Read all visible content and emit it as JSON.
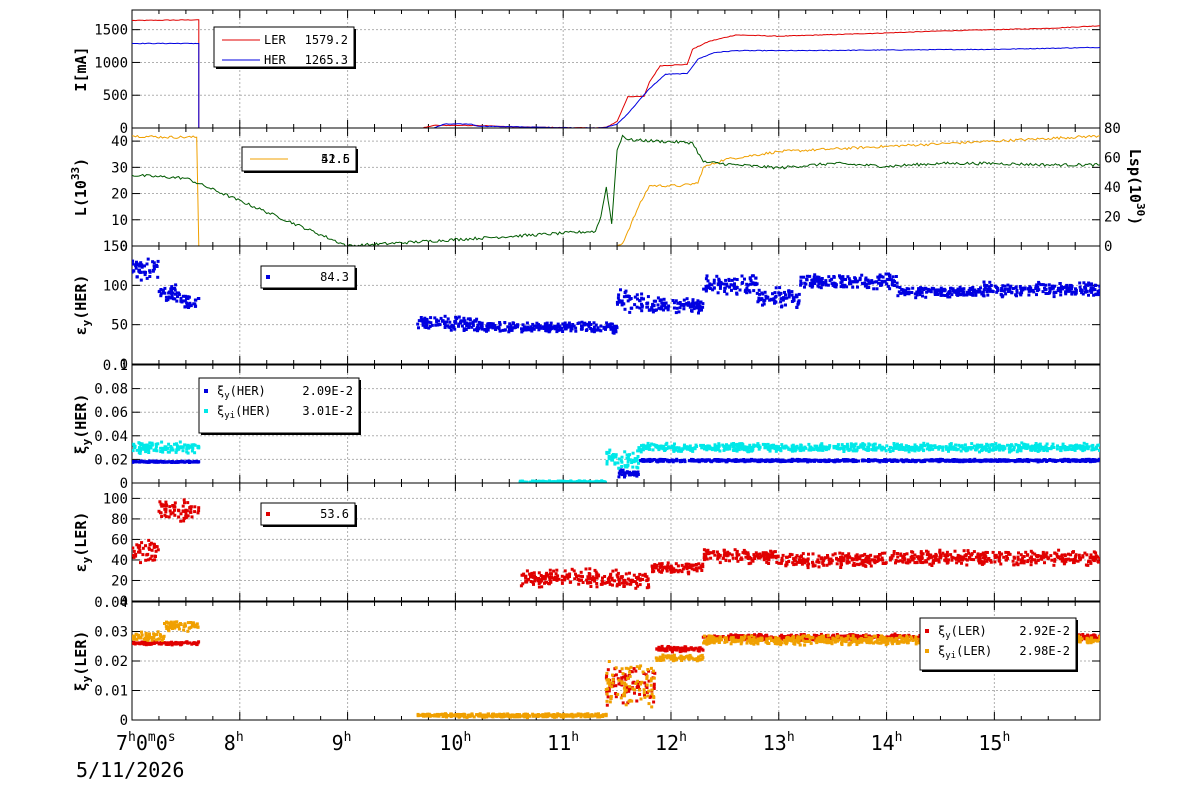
{
  "time_axis": {
    "ticks": [
      {
        "hour": 7,
        "label": "7",
        "sup": "h",
        "extra": "0",
        "extra_sup": "m",
        "extra2": "0",
        "extra2_sup": "s"
      },
      {
        "hour": 8,
        "label": "8",
        "sup": "h"
      },
      {
        "hour": 9,
        "label": "9",
        "sup": "h"
      },
      {
        "hour": 10,
        "label": "10",
        "sup": "h"
      },
      {
        "hour": 11,
        "label": "11",
        "sup": "h"
      },
      {
        "hour": 12,
        "label": "12",
        "sup": "h"
      },
      {
        "hour": 13,
        "label": "13",
        "sup": "h"
      },
      {
        "hour": 14,
        "label": "14",
        "sup": "h"
      },
      {
        "hour": 15,
        "label": "15",
        "sup": "h"
      }
    ],
    "range_hours": [
      7,
      15.98
    ],
    "date": "5/11/2026"
  },
  "colors": {
    "ler": "#e00000",
    "her": "#0000e0",
    "orange": "#f0a000",
    "green": "#005a00",
    "cyan": "#00e8e8",
    "grid": "#b0b0b0"
  },
  "chart_data": [
    {
      "id": "current",
      "type": "line",
      "ylabel": "I[mA]",
      "ylim": [
        0,
        1800
      ],
      "yticks": [
        0,
        500,
        1000,
        1500
      ],
      "legend": [
        {
          "name": "LER",
          "value": "1579.2",
          "color": "#e00000"
        },
        {
          "name": "HER",
          "value": "1265.3",
          "color": "#0000e0"
        }
      ],
      "series": [
        {
          "name": "LER",
          "color": "#e00000",
          "points": [
            [
              7.0,
              1640
            ],
            [
              7.62,
              1650
            ],
            [
              7.62,
              0
            ],
            [
              9.7,
              0
            ],
            [
              9.8,
              40
            ],
            [
              10.2,
              40
            ],
            [
              10.5,
              20
            ],
            [
              10.8,
              10
            ],
            [
              11.3,
              0
            ],
            [
              11.4,
              10
            ],
            [
              11.5,
              100
            ],
            [
              11.6,
              480
            ],
            [
              11.75,
              480
            ],
            [
              11.8,
              700
            ],
            [
              11.9,
              950
            ],
            [
              12.15,
              970
            ],
            [
              12.2,
              1200
            ],
            [
              12.35,
              1320
            ],
            [
              12.6,
              1420
            ],
            [
              13.0,
              1400
            ],
            [
              13.2,
              1410
            ],
            [
              14.0,
              1450
            ],
            [
              14.5,
              1480
            ],
            [
              15.0,
              1500
            ],
            [
              15.5,
              1520
            ],
            [
              15.98,
              1560
            ]
          ]
        },
        {
          "name": "HER",
          "color": "#0000e0",
          "points": [
            [
              7.0,
              1290
            ],
            [
              7.62,
              1290
            ],
            [
              7.62,
              0
            ],
            [
              9.8,
              0
            ],
            [
              9.9,
              60
            ],
            [
              10.15,
              60
            ],
            [
              10.2,
              30
            ],
            [
              10.8,
              10
            ],
            [
              11.3,
              0
            ],
            [
              11.4,
              10
            ],
            [
              11.5,
              60
            ],
            [
              11.6,
              220
            ],
            [
              11.8,
              600
            ],
            [
              11.95,
              820
            ],
            [
              12.15,
              830
            ],
            [
              12.25,
              1050
            ],
            [
              12.4,
              1150
            ],
            [
              12.6,
              1180
            ],
            [
              13.2,
              1180
            ],
            [
              14.0,
              1190
            ],
            [
              15.0,
              1200
            ],
            [
              15.98,
              1230
            ]
          ]
        }
      ]
    },
    {
      "id": "luminosity",
      "type": "line",
      "ylabel": "L(10^33)",
      "ylabel_right": "Lsp(10^30)",
      "ylim": [
        0,
        45
      ],
      "yticks": [
        0,
        10,
        20,
        30,
        40
      ],
      "ylim_right": [
        0,
        80
      ],
      "yticks_right": [
        0,
        20,
        40,
        60,
        80
      ],
      "legend": [
        {
          "name": "",
          "value": "52.5",
          "color": "#f0a000",
          "overlap": "41.6"
        }
      ],
      "series": [
        {
          "name": "L",
          "color": "#f0a000",
          "axis": "left",
          "points": [
            [
              7.0,
              42
            ],
            [
              7.3,
              41.5
            ],
            [
              7.6,
              41.5
            ],
            [
              7.62,
              0
            ],
            [
              11.5,
              0
            ],
            [
              11.55,
              1
            ],
            [
              11.7,
              15
            ],
            [
              11.8,
              23
            ],
            [
              12.1,
              23
            ],
            [
              12.25,
              24
            ],
            [
              12.3,
              30
            ],
            [
              12.5,
              33
            ],
            [
              13.0,
              36
            ],
            [
              13.5,
              37
            ],
            [
              14.0,
              38
            ],
            [
              14.5,
              39
            ],
            [
              15.0,
              40
            ],
            [
              15.5,
              41
            ],
            [
              15.98,
              42
            ]
          ]
        },
        {
          "name": "Lsp",
          "color": "#005a00",
          "axis": "right",
          "points": [
            [
              7.0,
              48
            ],
            [
              7.5,
              46
            ],
            [
              9.0,
              0
            ],
            [
              11.3,
              10
            ],
            [
              11.35,
              20
            ],
            [
              11.4,
              40
            ],
            [
              11.45,
              15
            ],
            [
              11.5,
              65
            ],
            [
              11.55,
              75
            ],
            [
              11.6,
              72
            ],
            [
              12.2,
              70
            ],
            [
              12.3,
              57
            ],
            [
              12.6,
              55
            ],
            [
              13.0,
              53
            ],
            [
              13.5,
              56
            ],
            [
              14.0,
              54
            ],
            [
              14.5,
              56
            ],
            [
              15.0,
              56
            ],
            [
              15.5,
              55
            ],
            [
              15.98,
              55
            ]
          ]
        }
      ]
    },
    {
      "id": "ey_her",
      "type": "scatter",
      "ylabel": "εy(HER)",
      "ylim": [
        0,
        150
      ],
      "yticks": [
        0,
        50,
        100,
        150
      ],
      "legend": [
        {
          "name": "",
          "value": "84.3",
          "color": "#0000e0"
        }
      ],
      "series": [
        {
          "name": "εy(HER)",
          "color": "#0000e0",
          "segments": [
            {
              "from": 7.0,
              "to": 7.25,
              "base": 120,
              "noise": 15
            },
            {
              "from": 7.25,
              "to": 7.45,
              "base": 90,
              "noise": 12
            },
            {
              "from": 7.45,
              "to": 7.62,
              "base": 78,
              "noise": 10
            },
            {
              "from": 9.65,
              "to": 10.2,
              "base": 52,
              "noise": 10
            },
            {
              "from": 10.2,
              "to": 11.5,
              "base": 46,
              "noise": 8
            },
            {
              "from": 11.5,
              "to": 11.75,
              "base": 80,
              "noise": 18
            },
            {
              "from": 11.75,
              "to": 12.3,
              "base": 75,
              "noise": 12
            },
            {
              "from": 12.3,
              "to": 12.8,
              "base": 100,
              "noise": 15
            },
            {
              "from": 12.8,
              "to": 13.2,
              "base": 85,
              "noise": 15
            },
            {
              "from": 13.2,
              "to": 14.1,
              "base": 105,
              "noise": 10
            },
            {
              "from": 14.1,
              "to": 14.9,
              "base": 92,
              "noise": 8
            },
            {
              "from": 14.9,
              "to": 15.98,
              "base": 95,
              "noise": 10
            }
          ]
        }
      ]
    },
    {
      "id": "xi_y_her",
      "type": "scatter",
      "ylabel": "ξy(HER)",
      "ylim": [
        0,
        0.1
      ],
      "yticks": [
        0,
        0.02,
        0.04,
        0.06,
        0.08,
        0.1
      ],
      "ytick_labels": [
        "0",
        "0.02",
        "0.04",
        "0.06",
        "0.08",
        "0.1"
      ],
      "legend": [
        {
          "name": "ξy(HER)",
          "value": "2.09E-2",
          "color": "#0000e0"
        },
        {
          "name": "ξyi(HER)",
          "value": "3.01E-2",
          "color": "#00e8e8"
        }
      ],
      "series": [
        {
          "name": "ξy(HER)",
          "color": "#0000e0",
          "segments": [
            {
              "from": 7.0,
              "to": 7.62,
              "base": 0.018,
              "noise": 0.0008
            },
            {
              "from": 11.5,
              "to": 11.7,
              "base": 0.008,
              "noise": 0.004
            },
            {
              "from": 11.7,
              "to": 15.98,
              "base": 0.019,
              "noise": 0.0012
            }
          ]
        },
        {
          "name": "ξyi(HER)",
          "color": "#00e8e8",
          "segments": [
            {
              "from": 7.0,
              "to": 7.62,
              "base": 0.03,
              "noise": 0.005
            },
            {
              "from": 10.6,
              "to": 11.4,
              "base": 0.001,
              "noise": 0.001
            },
            {
              "from": 11.4,
              "to": 11.7,
              "base": 0.02,
              "noise": 0.01
            },
            {
              "from": 11.7,
              "to": 15.98,
              "base": 0.03,
              "noise": 0.004
            }
          ]
        }
      ]
    },
    {
      "id": "ey_ler",
      "type": "scatter",
      "ylabel": "εy(LER)",
      "ylim": [
        0,
        115
      ],
      "yticks": [
        0,
        20,
        40,
        60,
        80,
        100
      ],
      "legend": [
        {
          "name": "",
          "value": "53.6",
          "color": "#e00000"
        }
      ],
      "series": [
        {
          "name": "εy(LER)",
          "color": "#e00000",
          "segments": [
            {
              "from": 7.0,
              "to": 7.25,
              "base": 50,
              "noise": 15
            },
            {
              "from": 7.25,
              "to": 7.62,
              "base": 88,
              "noise": 12
            },
            {
              "from": 10.6,
              "to": 11.5,
              "base": 22,
              "noise": 10
            },
            {
              "from": 11.5,
              "to": 11.8,
              "base": 20,
              "noise": 8
            },
            {
              "from": 11.8,
              "to": 12.3,
              "base": 32,
              "noise": 6
            },
            {
              "from": 12.3,
              "to": 13.0,
              "base": 44,
              "noise": 8
            },
            {
              "from": 13.0,
              "to": 14.0,
              "base": 40,
              "noise": 8
            },
            {
              "from": 14.0,
              "to": 15.98,
              "base": 42,
              "noise": 8
            }
          ]
        }
      ]
    },
    {
      "id": "xi_y_ler",
      "type": "scatter",
      "ylabel": "ξy(LER)",
      "ylim": [
        0,
        0.04
      ],
      "yticks": [
        0,
        0.01,
        0.02,
        0.03,
        0.04
      ],
      "ytick_labels": [
        "0",
        "0.01",
        "0.02",
        "0.03",
        "0.04"
      ],
      "legend": [
        {
          "name": "ξy(LER)",
          "value": "2.92E-2",
          "color": "#e00000"
        },
        {
          "name": "ξyi(LER)",
          "value": "2.98E-2",
          "color": "#f0a000"
        }
      ],
      "series": [
        {
          "name": "ξy(LER)",
          "color": "#e00000",
          "segments": [
            {
              "from": 7.0,
              "to": 7.62,
              "base": 0.026,
              "noise": 0.0006
            },
            {
              "from": 11.4,
              "to": 11.85,
              "base": 0.012,
              "noise": 0.008
            },
            {
              "from": 11.85,
              "to": 12.3,
              "base": 0.024,
              "noise": 0.001
            },
            {
              "from": 12.3,
              "to": 15.98,
              "base": 0.028,
              "noise": 0.0012
            }
          ]
        },
        {
          "name": "ξyi(LER)",
          "color": "#f0a000",
          "segments": [
            {
              "from": 7.0,
              "to": 7.3,
              "base": 0.028,
              "noise": 0.002
            },
            {
              "from": 7.3,
              "to": 7.62,
              "base": 0.032,
              "noise": 0.002
            },
            {
              "from": 9.65,
              "to": 11.4,
              "base": 0.0015,
              "noise": 0.0007
            },
            {
              "from": 11.4,
              "to": 11.85,
              "base": 0.012,
              "noise": 0.008
            },
            {
              "from": 11.85,
              "to": 12.3,
              "base": 0.021,
              "noise": 0.0012
            },
            {
              "from": 12.3,
              "to": 15.98,
              "base": 0.027,
              "noise": 0.0018
            }
          ]
        }
      ]
    }
  ]
}
